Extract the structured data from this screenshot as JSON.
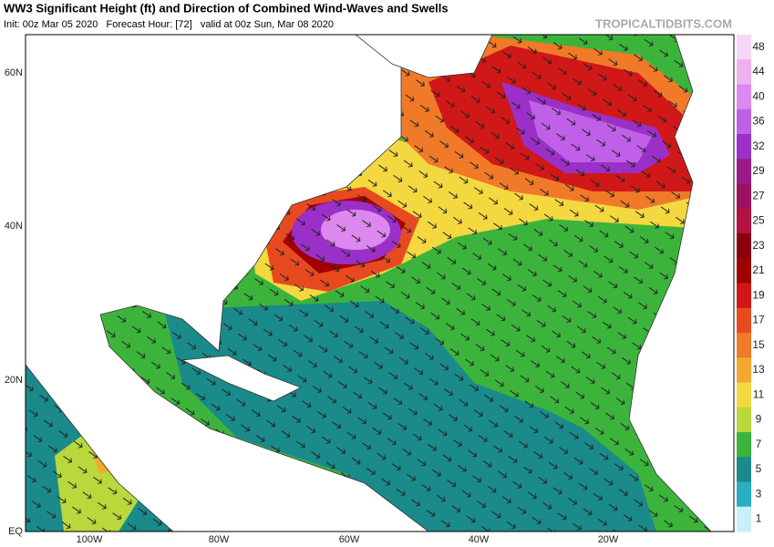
{
  "header": {
    "title": "WW3 Significant Height (ft) and Direction of Combined Wind-Waves and Swells",
    "subtitle": "Init: 00z Mar 05 2020   Forecast Hour: [72]   valid at 00z Sun, Mar 08 2020",
    "brand": "TROPICALTIDBITS.COM"
  },
  "map": {
    "latitude_labels": [
      "60N",
      "40N",
      "20N",
      "EQ"
    ],
    "longitude_labels": [
      "100W",
      "80W",
      "60W",
      "40W",
      "20W"
    ]
  },
  "colorbar": {
    "labels": [
      48,
      44,
      40,
      36,
      32,
      29,
      27,
      25,
      23,
      21,
      19,
      17,
      15,
      13,
      11,
      9,
      7,
      5,
      3,
      1
    ],
    "colors": [
      "#f6d6f6",
      "#eeb0ee",
      "#dd88ee",
      "#c060e8",
      "#9a30c8",
      "#9a1a8a",
      "#a01060",
      "#b41040",
      "#8a0010",
      "#a00000",
      "#d01818",
      "#e84a20",
      "#f07a28",
      "#f4a830",
      "#f4d840",
      "#b8d83c",
      "#3cb43c",
      "#1a8a8a",
      "#28b0c0",
      "#c8f0f8"
    ]
  }
}
